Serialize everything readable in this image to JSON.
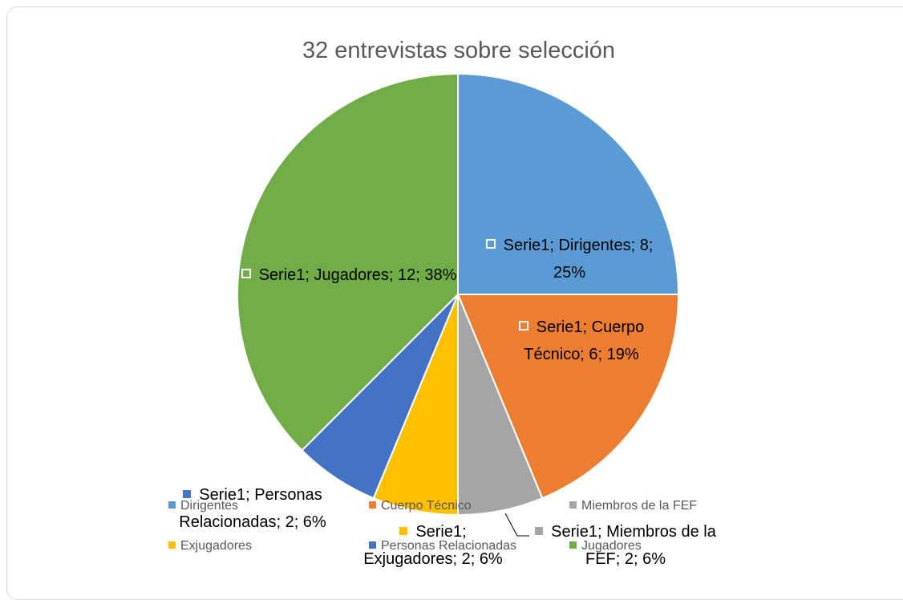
{
  "chart_data": {
    "type": "pie",
    "title": "32 entrevistas sobre selección",
    "categories": [
      "Dirigentes",
      "Cuerpo Técnico",
      "Miembros de la FEF",
      "Exjugadores",
      "Personas Relacionadas",
      "Jugadores"
    ],
    "values": [
      8,
      6,
      2,
      2,
      2,
      12
    ],
    "value_labels": [
      "Serie1; Dirigentes; 8; 25%",
      "Serie1; Cuerpo Técnico; 6; 19%",
      "Serie1; Miembros de la FEF; 2; 6%",
      "Serie1; Exjugadores; 2; 6%",
      "Serie1; Personas Relacionadas; 2; 6%",
      "Serie1; Jugadores; 12; 38%"
    ],
    "colors": [
      "#5b9bd5",
      "#ed7d31",
      "#a5a5a5",
      "#ffc000",
      "#4472c4",
      "#70ad47"
    ],
    "legend": "bottom"
  }
}
